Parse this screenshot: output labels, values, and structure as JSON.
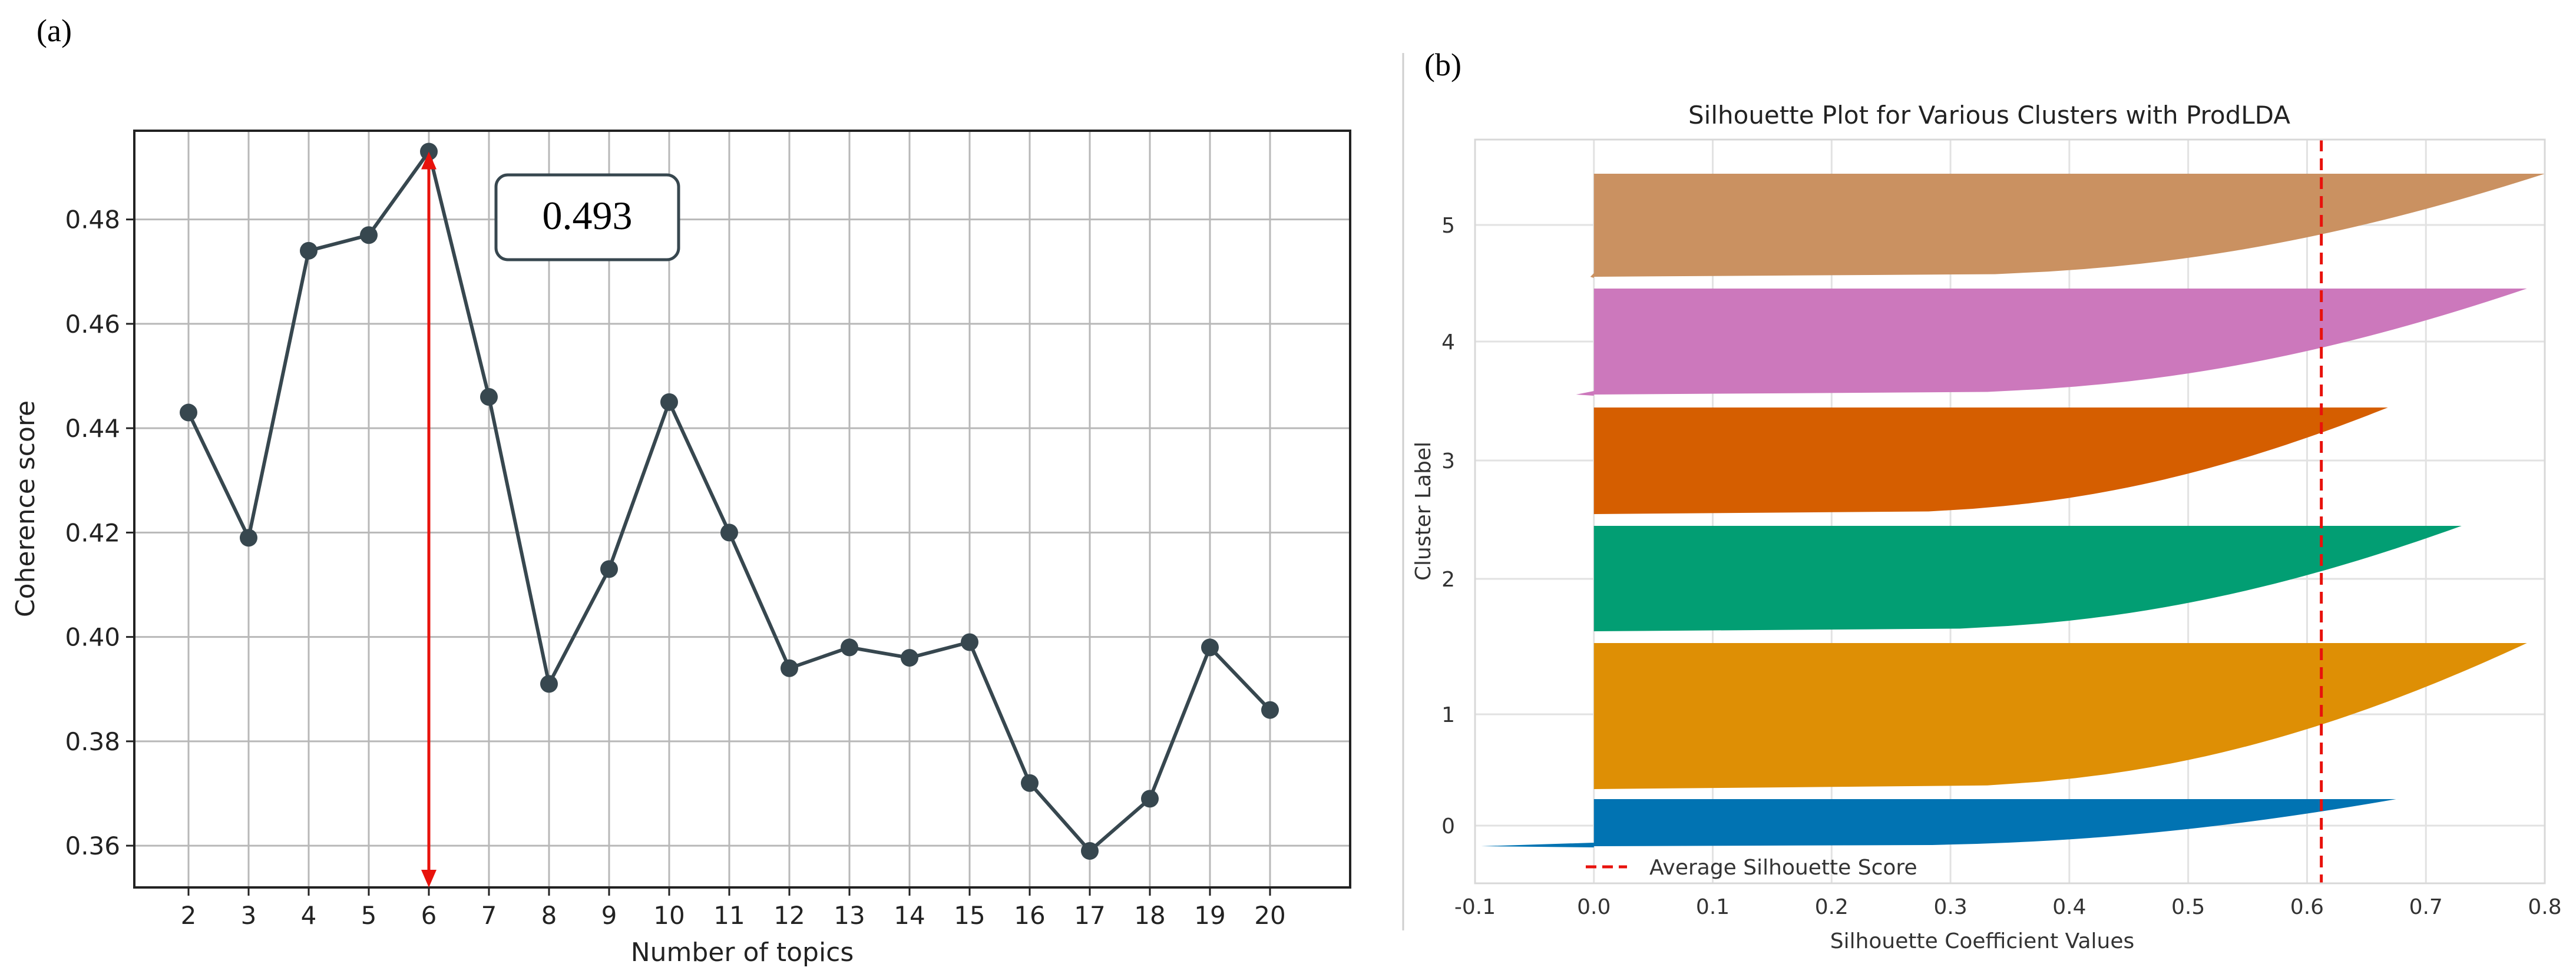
{
  "chart_data": [
    {
      "panel_label": "(a)",
      "type": "line",
      "title": "",
      "xlabel": "Number of topics",
      "ylabel": "Coherence score",
      "x": [
        2,
        3,
        4,
        5,
        6,
        7,
        8,
        9,
        10,
        11,
        12,
        13,
        14,
        15,
        16,
        17,
        18,
        19,
        20
      ],
      "values": [
        0.443,
        0.419,
        0.474,
        0.477,
        0.493,
        0.446,
        0.391,
        0.413,
        0.445,
        0.42,
        0.394,
        0.398,
        0.396,
        0.399,
        0.372,
        0.359,
        0.369,
        0.398,
        0.386
      ],
      "ylim": [
        0.352,
        0.497
      ],
      "y_ticks": [
        0.36,
        0.38,
        0.4,
        0.42,
        0.44,
        0.46,
        0.48
      ],
      "y_tick_labels": [
        "0.36",
        "0.38",
        "0.40",
        "0.42",
        "0.44",
        "0.46",
        "0.48"
      ],
      "grid": true,
      "line_color": "#37474f",
      "annotation": {
        "text": "0.493",
        "x": 6,
        "y": 0.493,
        "arrow_color": "#e8120c"
      }
    },
    {
      "panel_label": "(b)",
      "type": "area",
      "title": "Silhouette Plot for Various Clusters with ProdLDA",
      "xlabel": "Silhouette Coefficient Values",
      "ylabel": "Cluster Label",
      "xlim": [
        -0.1,
        0.8
      ],
      "x_ticks": [
        -0.1,
        0.0,
        0.1,
        0.2,
        0.3,
        0.4,
        0.5,
        0.6,
        0.7,
        0.8
      ],
      "x_tick_labels": [
        "-0.1",
        "0.0",
        "0.1",
        "0.2",
        "0.3",
        "0.4",
        "0.5",
        "0.6",
        "0.7",
        "0.8"
      ],
      "grid": true,
      "average_silhouette_score": 0.612,
      "legend": {
        "label": "Average Silhouette Score",
        "placement": "lower-left"
      },
      "clusters": [
        {
          "label": "0",
          "min": -0.095,
          "max": 0.675,
          "color": "#0173b2"
        },
        {
          "label": "1",
          "min": 0.0,
          "max": 0.785,
          "color": "#de8f05"
        },
        {
          "label": "2",
          "min": 0.0,
          "max": 0.73,
          "color": "#029e73"
        },
        {
          "label": "3",
          "min": 0.0,
          "max": 0.668,
          "color": "#d55e00"
        },
        {
          "label": "4",
          "min": -0.015,
          "max": 0.785,
          "color": "#cc78bc"
        },
        {
          "label": "5",
          "min": -0.003,
          "max": 0.8,
          "color": "#ca9161"
        }
      ]
    }
  ]
}
